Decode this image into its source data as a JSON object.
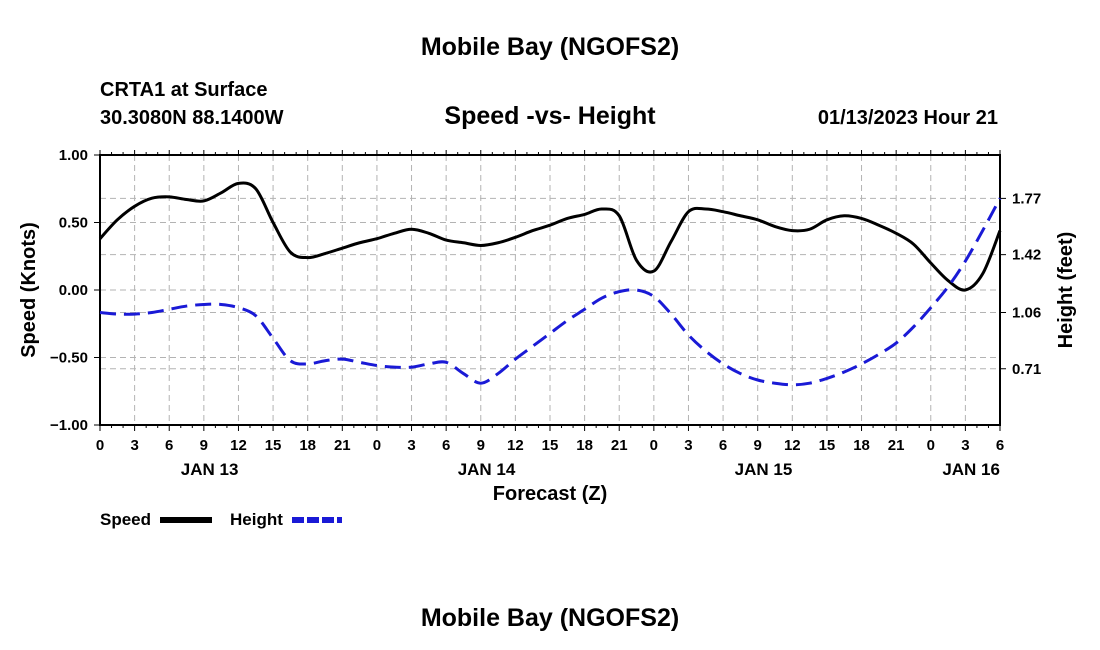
{
  "header": {
    "title": "Mobile Bay (NGOFS2)",
    "station": "CRTA1 at Surface",
    "coords": "30.3080N  88.1400W",
    "subtitle": "Speed -vs- Height",
    "datetime": "01/13/2023 Hour 21"
  },
  "footer": {
    "title": "Mobile Bay (NGOFS2)"
  },
  "colors": {
    "speed": "#000000",
    "height": "#1a1ad6",
    "grid": "#b3b3b3"
  },
  "chart_data": {
    "type": "line",
    "xlabel": "Forecast (Z)",
    "ylabel": "Speed (Knots)",
    "y2label": "Height (feet)",
    "xlim": [
      0,
      78
    ],
    "ylim": [
      -1.0,
      1.0
    ],
    "y2lim": [
      0.36,
      2.04
    ],
    "grid": true,
    "legend": "bottom-left",
    "x_ticks": [
      0,
      3,
      6,
      9,
      12,
      15,
      18,
      21,
      24,
      27,
      30,
      33,
      36,
      39,
      42,
      45,
      48,
      51,
      54,
      57,
      60,
      63,
      66,
      69,
      72,
      75,
      78
    ],
    "x_tick_labels": [
      "0",
      "3",
      "6",
      "9",
      "12",
      "15",
      "18",
      "21",
      "0",
      "3",
      "6",
      "9",
      "12",
      "15",
      "18",
      "21",
      "0",
      "3",
      "6",
      "9",
      "12",
      "15",
      "18",
      "21",
      "0",
      "3",
      "6"
    ],
    "date_labels": [
      {
        "x": 9.5,
        "label": "JAN 13"
      },
      {
        "x": 33.5,
        "label": "JAN 14"
      },
      {
        "x": 57.5,
        "label": "JAN 15"
      },
      {
        "x": 75.5,
        "label": "JAN 16"
      }
    ],
    "y_ticks": [
      1.0,
      0.5,
      0.0,
      -0.5,
      -1.0
    ],
    "y_tick_labels": [
      "1.00",
      "0.50",
      "0.00",
      "−0.50",
      "−1.00"
    ],
    "y2_ticks": [
      1.77,
      1.42,
      1.06,
      0.71
    ],
    "y2_tick_labels": [
      "1.77",
      "1.42",
      "1.06",
      "0.71"
    ],
    "series": [
      {
        "name": "Speed",
        "axis": "left",
        "style": "solid",
        "x": [
          0,
          1.5,
          3,
          4.5,
          6,
          7.5,
          9,
          10.5,
          12,
          13.5,
          15,
          16.5,
          18,
          19.5,
          21,
          22.5,
          24,
          25.5,
          27,
          28.5,
          30,
          31.5,
          33,
          34.5,
          36,
          37.5,
          39,
          40.5,
          42,
          43.5,
          45,
          46.5,
          48,
          49.5,
          51,
          52.5,
          54,
          55.5,
          57,
          58.5,
          60,
          61.5,
          63,
          64.5,
          66,
          67.5,
          69,
          70.5,
          72,
          73.5,
          75,
          76.5,
          78
        ],
        "values": [
          0.38,
          0.52,
          0.62,
          0.68,
          0.69,
          0.67,
          0.66,
          0.72,
          0.79,
          0.75,
          0.5,
          0.28,
          0.24,
          0.27,
          0.31,
          0.35,
          0.38,
          0.42,
          0.45,
          0.42,
          0.37,
          0.35,
          0.33,
          0.35,
          0.39,
          0.44,
          0.48,
          0.53,
          0.56,
          0.6,
          0.55,
          0.22,
          0.14,
          0.36,
          0.58,
          0.6,
          0.58,
          0.55,
          0.52,
          0.47,
          0.44,
          0.45,
          0.52,
          0.55,
          0.53,
          0.48,
          0.42,
          0.34,
          0.2,
          0.07,
          0.0,
          0.12,
          0.44
        ]
      },
      {
        "name": "Height",
        "axis": "right",
        "style": "dashed",
        "x": [
          0,
          1.5,
          3,
          4.5,
          6,
          7.5,
          9,
          10.5,
          12,
          13.5,
          15,
          16.5,
          18,
          19.5,
          21,
          22.5,
          24,
          25.5,
          27,
          28.5,
          30,
          31.5,
          33,
          34.5,
          36,
          37.5,
          39,
          40.5,
          42,
          43.5,
          45,
          46.5,
          48,
          49.5,
          51,
          52.5,
          54,
          55.5,
          57,
          58.5,
          60,
          61.5,
          63,
          64.5,
          66,
          67.5,
          69,
          70.5,
          72,
          73.5,
          75,
          76.5,
          78
        ],
        "values": [
          1.06,
          1.05,
          1.05,
          1.06,
          1.08,
          1.1,
          1.11,
          1.11,
          1.09,
          1.04,
          0.9,
          0.76,
          0.74,
          0.76,
          0.77,
          0.75,
          0.73,
          0.72,
          0.72,
          0.74,
          0.75,
          0.68,
          0.62,
          0.68,
          0.77,
          0.85,
          0.93,
          1.01,
          1.08,
          1.15,
          1.19,
          1.2,
          1.16,
          1.05,
          0.92,
          0.82,
          0.74,
          0.68,
          0.64,
          0.62,
          0.61,
          0.62,
          0.65,
          0.69,
          0.74,
          0.8,
          0.87,
          0.97,
          1.09,
          1.22,
          1.38,
          1.57,
          1.77
        ]
      }
    ]
  }
}
